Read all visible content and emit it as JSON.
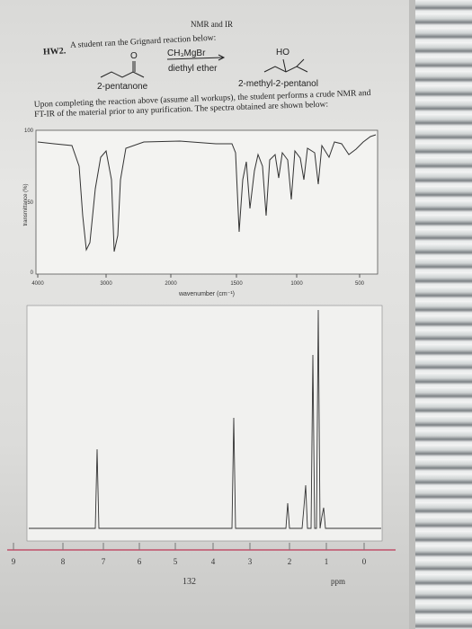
{
  "header": {
    "title": "NMR and IR"
  },
  "problem": {
    "label": "HW2.",
    "text": "A student ran the Grignard reaction below:"
  },
  "reaction": {
    "reactant_atom": "O",
    "reactant": "2-pentanone",
    "reagent": "CH₃MgBr",
    "solvent": "diethyl ether",
    "product_group": "HO",
    "product": "2-methyl-2-pentanol"
  },
  "description": "Upon completing the reaction above (assume all workups), the student performs a crude NMR and FT-IR of the material prior to any purification. The spectra obtained are shown below:",
  "ir": {
    "y_axis_label": "transmittance (%)",
    "y_ticks": [
      "100",
      "50",
      "0"
    ],
    "x_ticks": [
      "4000",
      "3000",
      "2000",
      "1500",
      "1000",
      "500"
    ],
    "x_axis_label": "wavenumber (cm⁻¹)"
  },
  "nmr": {
    "x_ticks": [
      "9",
      "8",
      "7",
      "6",
      "5",
      "4",
      "3",
      "2",
      "1",
      "0"
    ],
    "x_axis_label": "ppm"
  },
  "page_number": "132"
}
